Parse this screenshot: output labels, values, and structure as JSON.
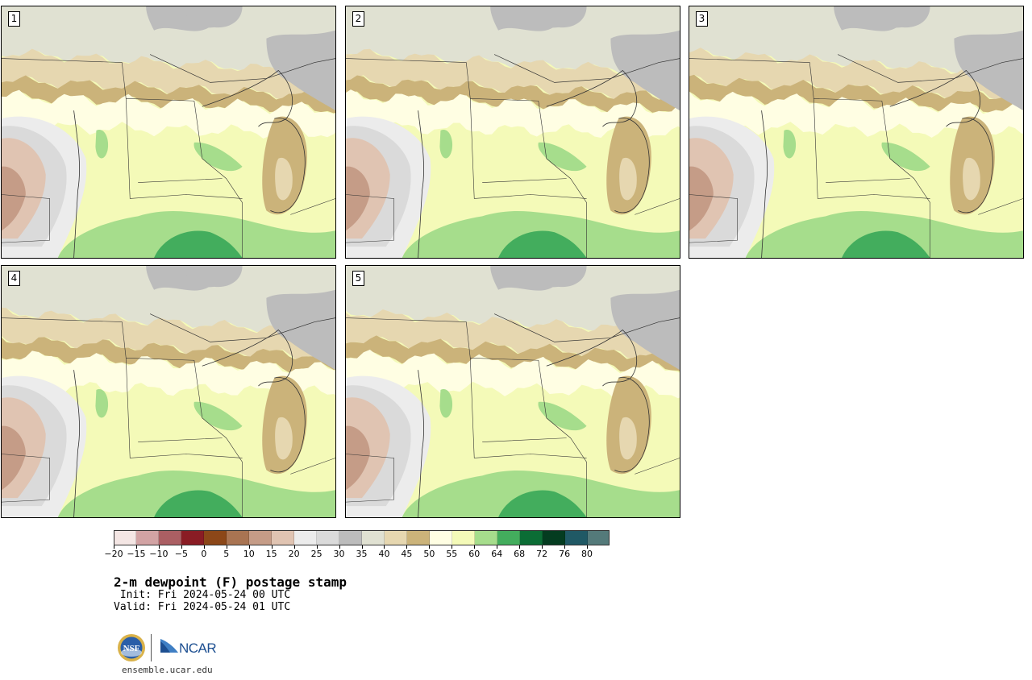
{
  "panels": [
    {
      "label": "1"
    },
    {
      "label": "2"
    },
    {
      "label": "3"
    },
    {
      "label": "4"
    },
    {
      "label": "5"
    }
  ],
  "colorbar": {
    "colors": [
      "#f4e6e4",
      "#d2a3a4",
      "#ab5f63",
      "#8a1c24",
      "#8c4718",
      "#a97452",
      "#c59c87",
      "#e0c4b2",
      "#ececec",
      "#dadada",
      "#bcbcbc",
      "#e0e1d2",
      "#e6d7b0",
      "#cbb37a",
      "#fffee3",
      "#f4fab8",
      "#a6dd8c",
      "#43ad5d",
      "#0b6d35",
      "#043c20",
      "#205965",
      "#547a7a"
    ],
    "ticks": [
      "−20",
      "−15",
      "−10",
      "−5",
      "0",
      "5",
      "10",
      "15",
      "20",
      "25",
      "30",
      "35",
      "40",
      "45",
      "50",
      "55",
      "60",
      "64",
      "68",
      "72",
      "76",
      "80"
    ]
  },
  "title": "2-m dewpoint (F) postage stamp",
  "init": " Init: Fri 2024-05-24 00 UTC",
  "valid": "Valid: Fri 2024-05-24 01 UTC",
  "logos": {
    "left": "NSF",
    "right": "NCAR"
  },
  "site": "ensemble.ucar.edu"
}
